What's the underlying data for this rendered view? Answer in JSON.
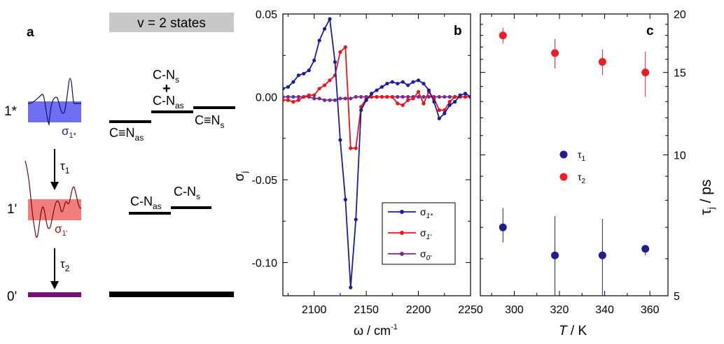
{
  "panels": {
    "a": {
      "letter": "a",
      "states": [
        "1*",
        "1'",
        "0'"
      ],
      "lifetimes": [
        "τ",
        "τ"
      ],
      "lifetime_subs": [
        "1",
        "2"
      ],
      "sigma_labels": [
        {
          "base": "σ",
          "sub": "1*",
          "color": "#1a1aa6"
        },
        {
          "base": "σ",
          "sub": "1'",
          "color": "#b01010"
        }
      ],
      "box_colors": {
        "one_star": "#6f6ff4",
        "one_prime": "#f37c7c",
        "zero_prime": "#7a0d7e"
      },
      "v2_header": "v = 2 states",
      "v2_levels": {
        "cn_as_triple": "C≡N",
        "cn_as_triple_sub": "as",
        "c_ns_top_a": "C-N",
        "c_ns_top_a_sub": "s",
        "plus": "+",
        "c_nas_top_b": "C-N",
        "c_nas_top_b_sub": "as",
        "cn_s_triple": "C≡N",
        "cn_s_triple_sub": "s",
        "mid_as": "C-N",
        "mid_as_sub": "as",
        "mid_s": "C-N",
        "mid_s_sub": "s"
      }
    },
    "b": {
      "letter": "b"
    },
    "c": {
      "letter": "c"
    }
  },
  "chart_data": [
    {
      "type": "line",
      "panel": "b",
      "xlabel": "ω / cm",
      "xlabel_sup": "-1",
      "ylabel": "σ",
      "ylabel_sub": "j",
      "xlim": [
        2070,
        2250
      ],
      "ylim": [
        -0.12,
        0.05
      ],
      "xticks": [
        2100,
        2150,
        2200,
        2250
      ],
      "xticklabels": [
        "2100",
        "2150",
        "2200",
        "2250"
      ],
      "yticks": [
        0.05,
        0.0,
        -0.05,
        -0.1
      ],
      "yticklabels": [
        "0.05",
        "0.00",
        "-0.05",
        "-0.10"
      ],
      "legend_position": "bottom-right",
      "series": [
        {
          "name": "σ",
          "name_sub": "1*",
          "color": "#1c1c9e",
          "x": [
            2070,
            2075,
            2080,
            2085,
            2090,
            2095,
            2100,
            2105,
            2110,
            2115,
            2120,
            2125,
            2130,
            2135,
            2140,
            2145,
            2150,
            2155,
            2160,
            2165,
            2170,
            2175,
            2180,
            2185,
            2190,
            2195,
            2200,
            2205,
            2210,
            2215,
            2220,
            2225,
            2230,
            2235,
            2240,
            2245,
            2250
          ],
          "y": [
            0.005,
            0.006,
            0.009,
            0.013,
            0.014,
            0.016,
            0.022,
            0.034,
            0.041,
            0.047,
            0.021,
            -0.026,
            -0.062,
            -0.115,
            -0.074,
            -0.008,
            -0.002,
            0.002,
            0.004,
            0.006,
            0.008,
            0.009,
            0.008,
            0.009,
            0.007,
            0.009,
            0.01,
            0.008,
            0.004,
            -0.003,
            -0.013,
            -0.01,
            -0.005,
            -0.003,
            0.001,
            0.002,
            0.0
          ]
        },
        {
          "name": "σ",
          "name_sub": "1'",
          "color": "#e8141b",
          "x": [
            2070,
            2075,
            2080,
            2085,
            2090,
            2095,
            2100,
            2105,
            2110,
            2115,
            2120,
            2125,
            2130,
            2135,
            2140,
            2145,
            2150,
            2155,
            2160,
            2165,
            2170,
            2175,
            2180,
            2185,
            2190,
            2195,
            2200,
            2205,
            2210,
            2215,
            2220,
            2225,
            2230,
            2235,
            2240,
            2245,
            2250
          ],
          "y": [
            -0.002,
            -0.002,
            -0.003,
            -0.002,
            0.0,
            0.001,
            0.001,
            0.005,
            0.007,
            0.01,
            0.013,
            0.027,
            0.03,
            -0.031,
            -0.031,
            -0.006,
            -0.001,
            0.0,
            0.0,
            0.0,
            0.0,
            0.0,
            -0.004,
            -0.005,
            -0.002,
            -0.001,
            0.003,
            -0.004,
            0.003,
            -0.001,
            -0.008,
            -0.008,
            -0.003,
            0.0,
            0.0,
            0.0,
            0.0
          ]
        },
        {
          "name": "σ",
          "name_sub": "0'",
          "color": "#7a2a8c",
          "x": [
            2070,
            2075,
            2080,
            2085,
            2090,
            2095,
            2100,
            2105,
            2110,
            2115,
            2120,
            2125,
            2130,
            2135,
            2140,
            2145,
            2150,
            2155,
            2160,
            2165,
            2170,
            2175,
            2180,
            2185,
            2190,
            2195,
            2200,
            2205,
            2210,
            2215,
            2220,
            2225,
            2230,
            2235,
            2240,
            2245,
            2250
          ],
          "y": [
            0.0,
            0.0,
            0.0,
            0.0,
            0.0,
            0.0,
            -0.001,
            -0.001,
            -0.002,
            -0.002,
            -0.002,
            -0.001,
            -0.001,
            -0.001,
            0.0,
            0.0,
            0.0,
            0.0,
            0.0,
            0.0,
            0.0,
            0.0,
            0.0,
            0.0,
            0.0,
            0.0,
            0.0,
            0.0,
            0.0,
            0.0,
            0.0,
            0.0,
            0.0,
            0.0,
            0.0,
            0.0,
            0.0
          ]
        }
      ]
    },
    {
      "type": "scatter",
      "panel": "c",
      "xlabel": "T",
      "xlabel_unit": " / K",
      "ylabel": "τ",
      "ylabel_sub": "j",
      "ylabel_unit": " / ps",
      "xlim": [
        285,
        368
      ],
      "ylim": [
        5,
        20
      ],
      "yscale": "log",
      "xticks": [
        300,
        320,
        340,
        360
      ],
      "xticklabels": [
        "300",
        "320",
        "340",
        "360"
      ],
      "yticks": [
        5,
        10,
        15,
        20
      ],
      "yticklabels": [
        "5",
        "10",
        "15",
        "20"
      ],
      "legend_position": "center",
      "series": [
        {
          "name": "τ",
          "name_sub": "1",
          "color": "#1f1f8f",
          "x": [
            295,
            318,
            339,
            358
          ],
          "y": [
            7.0,
            6.1,
            6.1,
            6.3
          ],
          "err_lo": [
            6.5,
            5.0,
            5.0,
            6.1
          ],
          "err_hi": [
            7.7,
            7.4,
            7.3,
            6.4
          ]
        },
        {
          "name": "τ",
          "name_sub": "2",
          "color": "#ee1c25",
          "x": [
            295,
            318,
            339,
            358
          ],
          "y": [
            18.0,
            16.5,
            15.8,
            15.0
          ],
          "err_lo": [
            17.3,
            15.3,
            14.8,
            13.3
          ],
          "err_hi": [
            18.7,
            17.7,
            16.8,
            16.6
          ]
        }
      ]
    }
  ]
}
